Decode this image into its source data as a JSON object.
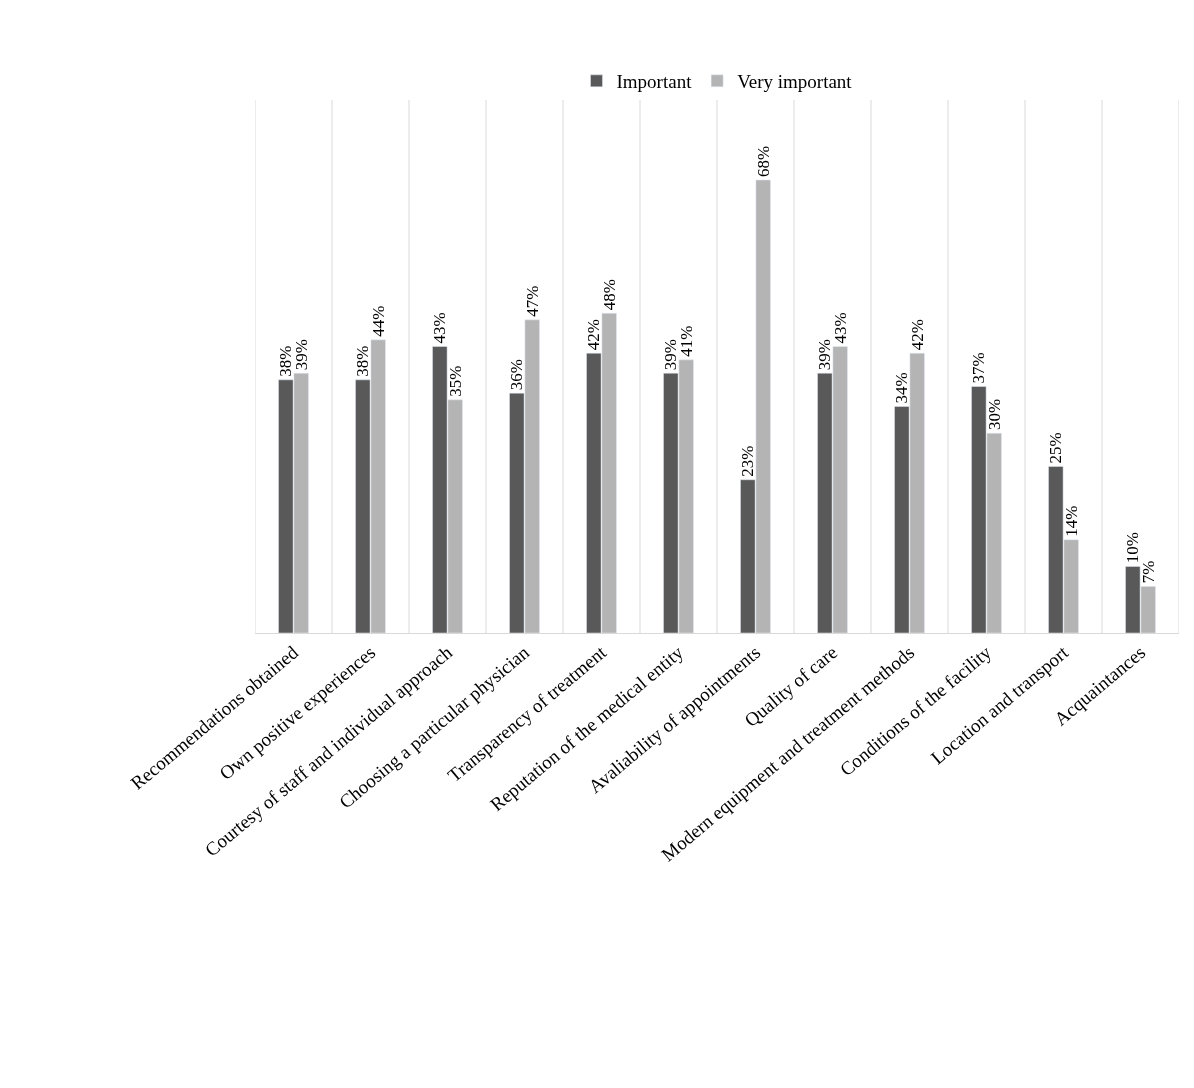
{
  "chart_data": {
    "type": "bar",
    "categories": [
      "Recommendations obtained",
      "Own positive experiences",
      "Courtesy of staff and individual approach",
      "Choosing a particular physician",
      "Transparency of treatment",
      "Reputation of the medical entity",
      "Avaliability of appointments",
      "Quality of care",
      "Modern equipment and treatment methods",
      "Conditions of the facility",
      "Location and transport",
      "Acquaintances"
    ],
    "series": [
      {
        "name": "Important",
        "color": "#595959",
        "values": [
          38,
          38,
          43,
          36,
          42,
          39,
          23,
          39,
          34,
          37,
          25,
          10
        ],
        "value_labels": [
          "38%",
          "38%",
          "43%",
          "36%",
          "42%",
          "39%",
          "23%",
          "39%",
          "34%",
          "37%",
          "25%",
          "10%"
        ]
      },
      {
        "name": "Very important",
        "color": "#b4b4b4",
        "values": [
          39,
          44,
          35,
          47,
          48,
          41,
          68,
          43,
          42,
          30,
          14,
          7
        ],
        "value_labels": [
          "39%",
          "44%",
          "35%",
          "47%",
          "48%",
          "41%",
          "68%",
          "43%",
          "42%",
          "30%",
          "14%",
          "7%"
        ]
      }
    ],
    "ylim": [
      0,
      80
    ],
    "tick_labels": "x",
    "grid": "x",
    "legend": "top"
  }
}
